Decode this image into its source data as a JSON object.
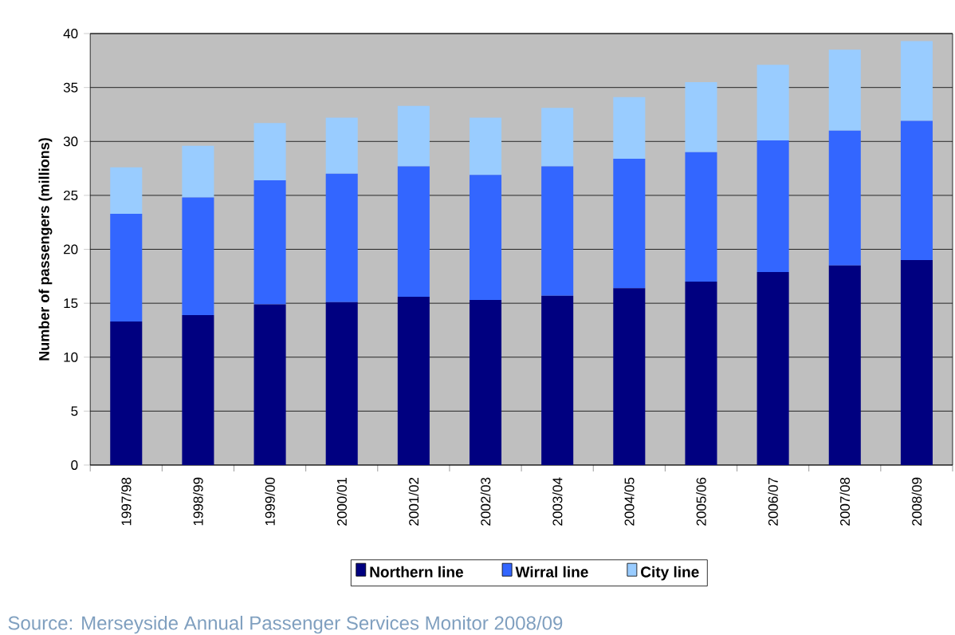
{
  "chart_data": {
    "type": "bar",
    "stacked": true,
    "ylabel": "Number of passengers (millions)",
    "categories": [
      "1997/98",
      "1998/99",
      "1999/00",
      "2000/01",
      "2001/02",
      "2002/03",
      "2003/04",
      "2004/05",
      "2005/06",
      "2006/07",
      "2007/08",
      "2008/09"
    ],
    "series": [
      {
        "name": "Northern line",
        "color": "#000080",
        "values": [
          13.3,
          13.9,
          14.9,
          15.1,
          15.6,
          15.3,
          15.7,
          16.4,
          17.0,
          17.9,
          18.5,
          19.0
        ]
      },
      {
        "name": "Wirral line",
        "color": "#3366ff",
        "values": [
          10.0,
          10.9,
          11.5,
          11.9,
          12.1,
          11.6,
          12.0,
          12.0,
          12.0,
          12.2,
          12.5,
          12.9
        ]
      },
      {
        "name": "City line",
        "color": "#99ccff",
        "values": [
          4.3,
          4.8,
          5.3,
          5.2,
          5.6,
          5.3,
          5.4,
          5.7,
          6.5,
          7.0,
          7.5,
          7.4
        ]
      }
    ],
    "ylim": [
      0,
      40
    ],
    "yticks": [
      0,
      5,
      10,
      15,
      20,
      25,
      30,
      35,
      40
    ],
    "grid": "y",
    "legend": "bottom",
    "annotations": [
      "Source:    Merseyside Annual Passenger Services Monitor 2008/09"
    ]
  }
}
